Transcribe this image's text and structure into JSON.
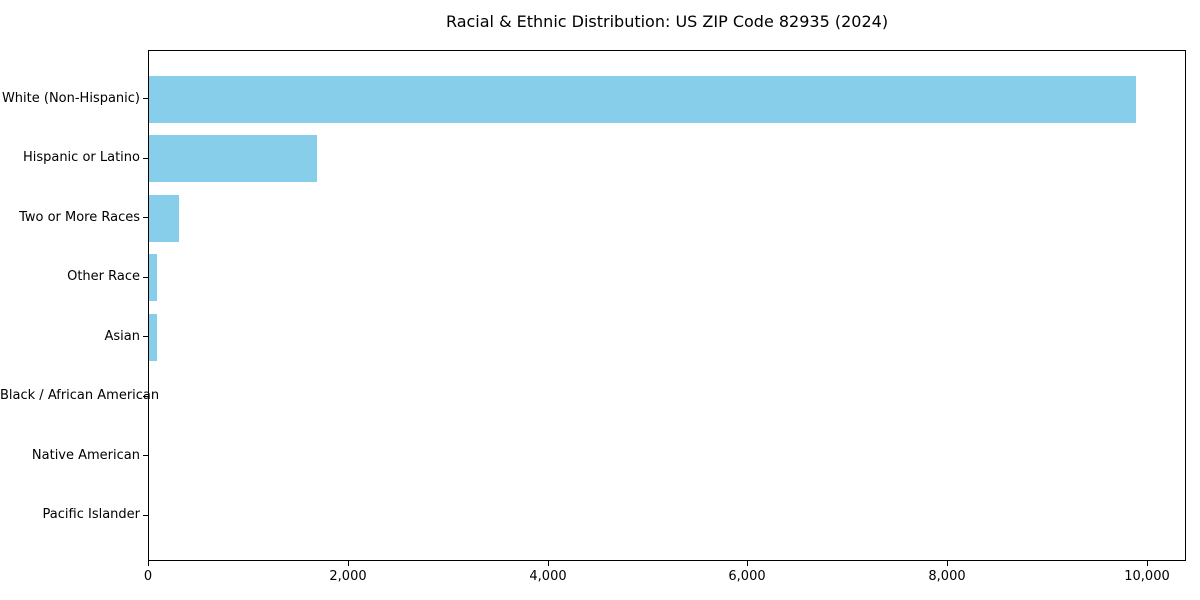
{
  "chart_data": {
    "type": "bar",
    "orientation": "horizontal",
    "title": "Racial & Ethnic Distribution: US ZIP Code 82935 (2024)",
    "categories": [
      "White (Non-Hispanic)",
      "Hispanic or Latino",
      "Two or More Races",
      "Other Race",
      "Asian",
      "Black / African American",
      "Native American",
      "Pacific Islander"
    ],
    "values": [
      9880,
      1680,
      300,
      80,
      80,
      0,
      0,
      0
    ],
    "xlabel": "",
    "ylabel": "",
    "xlim": [
      0,
      10390
    ],
    "xticks": [
      {
        "value": 0,
        "label": "0"
      },
      {
        "value": 2000,
        "label": "2,000"
      },
      {
        "value": 4000,
        "label": "4,000"
      },
      {
        "value": 6000,
        "label": "6,000"
      },
      {
        "value": 8000,
        "label": "8,000"
      },
      {
        "value": 10000,
        "label": "10,000"
      }
    ],
    "grid": false,
    "legend": false,
    "bar_color": "#87CEEB",
    "axis_color": "#000000",
    "background_color": "#ffffff"
  }
}
